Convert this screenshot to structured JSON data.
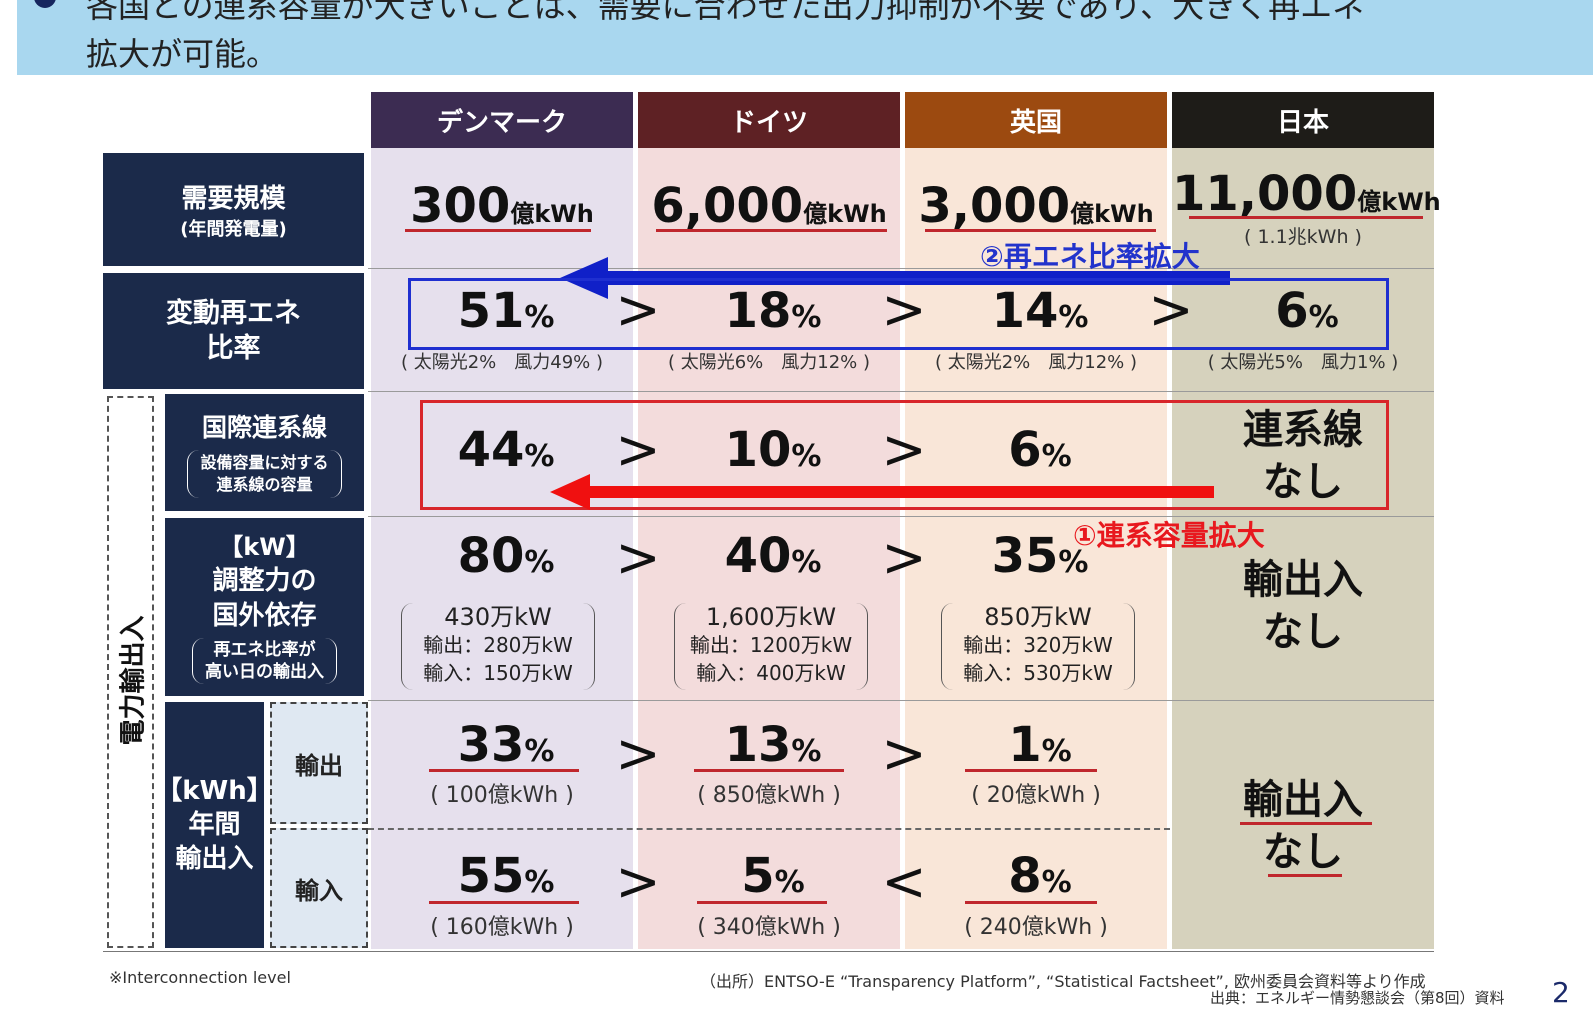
{
  "banner": {
    "line1": "各国との連系容量が大きいことは、需要に合わせた出力抑制が不要であり、大きく再エネ",
    "line2": "拡大が可能。"
  },
  "columns": [
    {
      "name": "デンマーク",
      "color": "#3c2c52",
      "bg": "#e6e0ed"
    },
    {
      "name": "ドイツ",
      "color": "#5e2124",
      "bg": "#f3dcdc"
    },
    {
      "name": "英国",
      "color": "#9c4a10",
      "bg": "#f9e6d8"
    },
    {
      "name": "日本",
      "color": "#1e1c18",
      "bg": "#d6d2bd"
    }
  ],
  "row_labels": {
    "demand": {
      "title": "需要規模",
      "sub": "(年間発電量)"
    },
    "vre": {
      "title1": "変動再エネ",
      "title2": "比率"
    },
    "power_trade": "電力輸出入",
    "interconnect": {
      "title": "国際連系線",
      "sub1": "設備容量に対する",
      "sub2": "連系線の容量"
    },
    "kw": {
      "t1": "【kW】",
      "t2": "調整力の",
      "t3": "国外依存",
      "sub1": "再エネ比率が",
      "sub2": "高い日の輸出入"
    },
    "kwh": {
      "t1": "【kWh】",
      "t2": "年間",
      "t3": "輸出入"
    },
    "export": "輸出",
    "import": "輸入"
  },
  "demand": [
    {
      "value": "300",
      "unit": "億kWh"
    },
    {
      "value": "6,000",
      "unit": "億kWh"
    },
    {
      "value": "3,000",
      "unit": "億kWh"
    },
    {
      "value": "11,000",
      "unit": "億kWh",
      "note": "( 1.1兆kWh )"
    }
  ],
  "vre": [
    {
      "value": "51",
      "pct": "%",
      "detail": "( 太陽光2%　風力49% )"
    },
    {
      "value": "18",
      "pct": "%",
      "detail": "( 太陽光6%　風力12% )"
    },
    {
      "value": "14",
      "pct": "%",
      "detail": "( 太陽光2%　風力12% )"
    },
    {
      "value": "6",
      "pct": "%",
      "detail": "( 太陽光5%　風力1% )"
    }
  ],
  "interconnect": [
    {
      "value": "44",
      "pct": "%"
    },
    {
      "value": "10",
      "pct": "%"
    },
    {
      "value": "6",
      "pct": "%"
    }
  ],
  "interconnect_japan": {
    "l1": "連系線",
    "l2": "なし"
  },
  "kw": [
    {
      "value": "80",
      "pct": "%",
      "cap": "430万kW",
      "exp": "輸出：280万kW",
      "imp": "輸入：150万kW"
    },
    {
      "value": "40",
      "pct": "%",
      "cap": "1,600万kW",
      "exp": "輸出：1200万kW",
      "imp": "輸入：400万kW"
    },
    {
      "value": "35",
      "pct": "%",
      "cap": "850万kW",
      "exp": "輸出：320万kW",
      "imp": "輸入：530万kW"
    }
  ],
  "kw_japan": {
    "l1": "輸出入",
    "l2": "なし"
  },
  "export": [
    {
      "value": "33",
      "pct": "%",
      "amount": "( 100億kWh )"
    },
    {
      "value": "13",
      "pct": "%",
      "amount": "( 850億kWh )"
    },
    {
      "value": "1",
      "pct": "%",
      "amount": "( 20億kWh )"
    }
  ],
  "import": [
    {
      "value": "55",
      "pct": "%",
      "amount": "( 160億kWh )"
    },
    {
      "value": "5",
      "pct": "%",
      "amount": "( 340億kWh )"
    },
    {
      "value": "8",
      "pct": "%",
      "amount": "( 240億kWh )"
    }
  ],
  "kwh_japan": {
    "l1": "輸出入",
    "l2": "なし"
  },
  "comparisons": {
    "vre": [
      ">",
      ">",
      ">"
    ],
    "interconnect": [
      ">",
      ">"
    ],
    "kw": [
      ">",
      ">"
    ],
    "export": [
      ">",
      ">"
    ],
    "import": [
      ">",
      "<"
    ]
  },
  "annotations": {
    "blue": "②再エネ比率拡大",
    "red": "①連系容量拡大"
  },
  "footer": {
    "left": "※Interconnection level",
    "source": "（出所）ENTSO-E “Transparency Platform”, “Statistical Factsheet”, 欧州委員会資料等より作成",
    "source2": "出典：エネルギー情勢懇談会（第8回）資料",
    "page": "2"
  }
}
